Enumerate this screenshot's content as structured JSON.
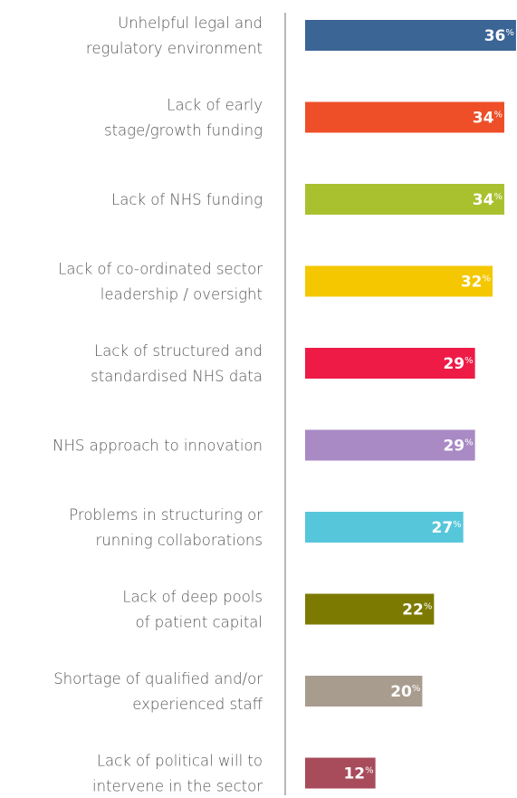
{
  "chart_data": {
    "type": "bar",
    "orientation": "horizontal",
    "categories": [
      "Unhelpful legal and\nregulatory environment",
      "Lack of early\nstage/growth funding",
      "Lack of NHS funding",
      "Lack of co-ordinated sector\nleadership / oversight",
      "Lack of structured and\nstandardised NHS data",
      "NHS approach to innovation",
      "Problems in structuring or\nrunning collaborations",
      "Lack of deep pools\nof patient capital",
      "Shortage of qualified and/or\nexperienced staff",
      "Lack of political will to\nintervene in the sector"
    ],
    "values": [
      36,
      34,
      34,
      32,
      29,
      29,
      27,
      22,
      20,
      12
    ],
    "value_labels": [
      "36%",
      "34%",
      "34%",
      "32%",
      "29%",
      "29%",
      "27%",
      "22%",
      "20%",
      "12%"
    ],
    "colors": [
      "#3b6595",
      "#ee4f28",
      "#a9c12e",
      "#f4c700",
      "#ee1b47",
      "#a98ac4",
      "#56c6db",
      "#7c7a00",
      "#a89c8f",
      "#a84b5b"
    ]
  }
}
